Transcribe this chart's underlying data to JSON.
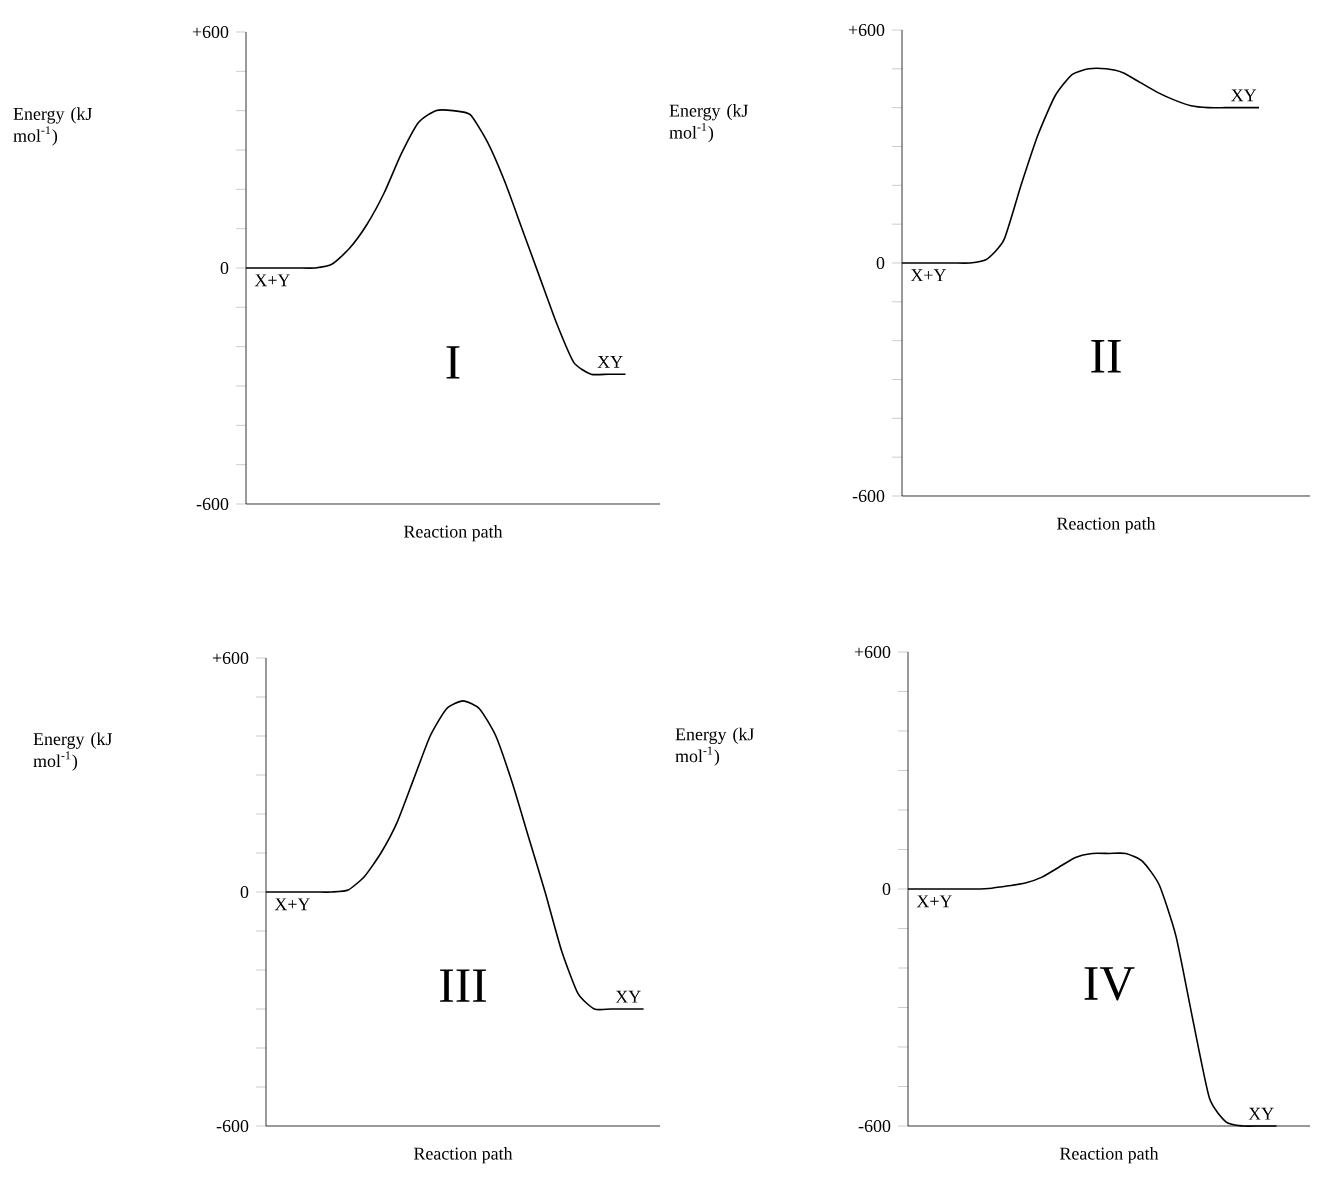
{
  "chart_data": [
    {
      "type": "line",
      "xlabel": "Reaction path",
      "ylabel": "Energy (kJ mol$^{-1}$)",
      "color": "#000000",
      "categories": [
        null,
        null,
        null,
        null,
        null,
        null,
        null,
        null,
        null,
        null,
        null,
        null,
        null,
        null,
        null,
        null,
        null,
        null,
        null,
        null,
        null,
        null,
        null,
        null,
        null
      ],
      "values": [
        0,
        0,
        0,
        0,
        0,
        10,
        50,
        110,
        190,
        290,
        370,
        400,
        400,
        390,
        320,
        220,
        100,
        -20,
        -140,
        -240,
        -270,
        -270,
        -270,
        null,
        null
      ],
      "ylim": [
        -600,
        600
      ],
      "yticks": [
        -600,
        {
          "value": -500,
          "label": null
        },
        {
          "value": -400,
          "label": null
        },
        {
          "value": -300,
          "label": null
        },
        {
          "value": -200,
          "label": null
        },
        {
          "value": -100,
          "label": null
        },
        0,
        {
          "value": 100,
          "label": null
        },
        {
          "value": 200,
          "label": null
        },
        {
          "value": 300,
          "label": null
        },
        {
          "value": 400,
          "label": null
        },
        {
          "value": 500,
          "label": null
        },
        {
          "value": 600,
          "label": "+600"
        }
      ],
      "annotations": [
        "X+Y",
        "XY",
        "I"
      ]
    },
    {
      "type": "line",
      "xlabel": "Reaction path",
      "ylabel": "Energy (kJ mol$^{-1}$)",
      "color": "#000000",
      "categories": [
        null,
        null,
        null,
        null,
        null,
        null,
        null,
        null,
        null,
        null,
        null,
        null,
        null,
        null,
        null,
        null,
        null,
        null,
        null,
        null,
        null,
        null,
        null,
        null,
        null
      ],
      "values": [
        0,
        0,
        0,
        0,
        0,
        10,
        60,
        200,
        330,
        430,
        485,
        500,
        500,
        490,
        465,
        440,
        420,
        405,
        400,
        400,
        400,
        400,
        null,
        null,
        null
      ],
      "ylim": [
        -600,
        600
      ],
      "yticks": [
        -600,
        {
          "value": -500,
          "label": null
        },
        {
          "value": -400,
          "label": null
        },
        {
          "value": -300,
          "label": null
        },
        {
          "value": -200,
          "label": null
        },
        {
          "value": -100,
          "label": null
        },
        0,
        {
          "value": 100,
          "label": null
        },
        {
          "value": 200,
          "label": null
        },
        {
          "value": 300,
          "label": null
        },
        {
          "value": 400,
          "label": null
        },
        {
          "value": 500,
          "label": null
        },
        {
          "value": 600,
          "label": "+600"
        }
      ],
      "annotations": [
        "X+Y",
        "XY",
        "II"
      ]
    },
    {
      "type": "line",
      "xlabel": "Reaction path",
      "ylabel": "Energy (kJ mol$^{-1}$)",
      "color": "#000000",
      "categories": [
        null,
        null,
        null,
        null,
        null,
        null,
        null,
        null,
        null,
        null,
        null,
        null,
        null,
        null,
        null,
        null,
        null,
        null,
        null,
        null,
        null,
        null,
        null,
        null,
        null
      ],
      "values": [
        0,
        0,
        0,
        0,
        0,
        5,
        40,
        100,
        180,
        290,
        400,
        470,
        490,
        470,
        400,
        280,
        140,
        0,
        -150,
        -260,
        -300,
        -300,
        -300,
        -300,
        null
      ],
      "ylim": [
        -600,
        600
      ],
      "yticks": [
        -600,
        {
          "value": -500,
          "label": null
        },
        {
          "value": -400,
          "label": null
        },
        {
          "value": -300,
          "label": null
        },
        {
          "value": -200,
          "label": null
        },
        {
          "value": -100,
          "label": null
        },
        0,
        {
          "value": 100,
          "label": null
        },
        {
          "value": 200,
          "label": null
        },
        {
          "value": 300,
          "label": null
        },
        {
          "value": 400,
          "label": null
        },
        {
          "value": 500,
          "label": null
        },
        {
          "value": 600,
          "label": "+600"
        }
      ],
      "annotations": [
        "X+Y",
        "XY",
        "III"
      ]
    },
    {
      "type": "line",
      "xlabel": "Reaction path",
      "ylabel": "Energy (kJ mol$^{-1}$)",
      "color": "#000000",
      "categories": [
        null,
        null,
        null,
        null,
        null,
        null,
        null,
        null,
        null,
        null,
        null,
        null,
        null,
        null,
        null,
        null,
        null,
        null,
        null,
        null,
        null,
        null,
        null,
        null,
        null
      ],
      "values": [
        0,
        0,
        0,
        0,
        0,
        2,
        8,
        15,
        30,
        55,
        80,
        90,
        90,
        90,
        70,
        10,
        -120,
        -330,
        -530,
        -590,
        -600,
        -600,
        -600,
        null,
        null
      ],
      "ylim": [
        -600,
        600
      ],
      "yticks": [
        -600,
        {
          "value": -500,
          "label": null
        },
        {
          "value": -400,
          "label": null
        },
        {
          "value": -300,
          "label": null
        },
        {
          "value": -200,
          "label": null
        },
        {
          "value": -100,
          "label": null
        },
        0,
        {
          "value": 100,
          "label": null
        },
        {
          "value": 200,
          "label": null
        },
        {
          "value": 300,
          "label": null
        },
        {
          "value": 400,
          "label": null
        },
        {
          "value": 500,
          "label": null
        },
        {
          "value": 600,
          "label": "+600"
        }
      ],
      "annotations": [
        "X+Y",
        "XY",
        "IV"
      ]
    }
  ]
}
